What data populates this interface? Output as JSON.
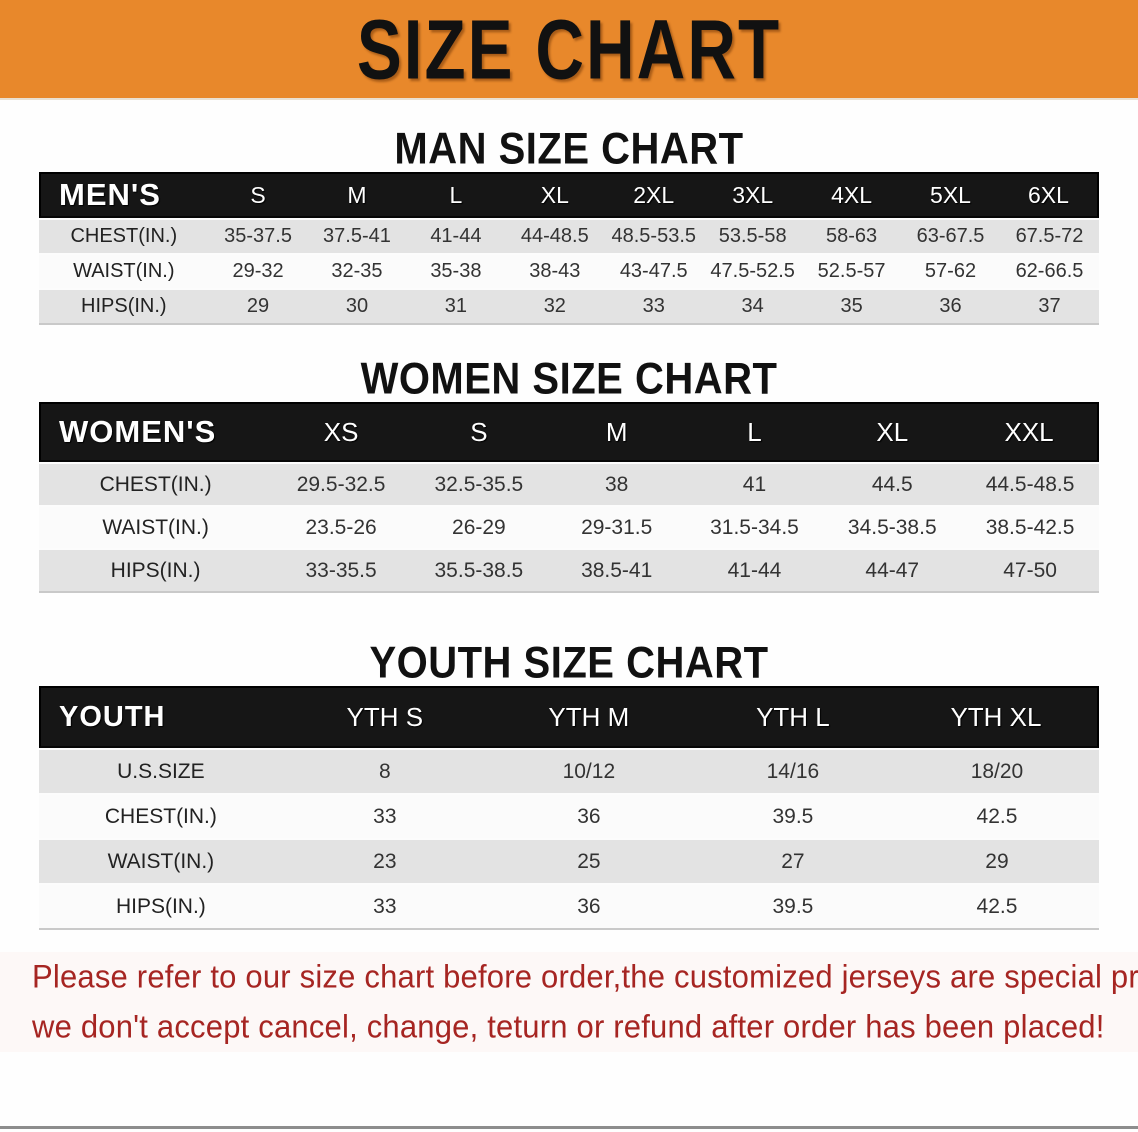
{
  "banner": {
    "title": "SIZE CHART",
    "bg_color": "#E8882B"
  },
  "colors": {
    "header_bar": "#161616",
    "stripe_gray": "#E3E3E3",
    "footer_red": "#A62522"
  },
  "sections": [
    {
      "title": "MAN SIZE CHART",
      "header_label": "MEN'S",
      "columns": [
        "S",
        "M",
        "L",
        "XL",
        "2XL",
        "3XL",
        "4XL",
        "5XL",
        "6XL"
      ],
      "rows": [
        {
          "label": "CHEST(IN.)",
          "values": [
            "35-37.5",
            "37.5-41",
            "41-44",
            "44-48.5",
            "48.5-53.5",
            "53.5-58",
            "58-63",
            "63-67.5",
            "67.5-72"
          ]
        },
        {
          "label": "WAIST(IN.)",
          "values": [
            "29-32",
            "32-35",
            "35-38",
            "38-43",
            "43-47.5",
            "47.5-52.5",
            "52.5-57",
            "57-62",
            "62-66.5"
          ]
        },
        {
          "label": "HIPS(IN.)",
          "values": [
            "29",
            "30",
            "31",
            "32",
            "33",
            "34",
            "35",
            "36",
            "37"
          ]
        }
      ]
    },
    {
      "title": "WOMEN SIZE CHART",
      "header_label": "WOMEN'S",
      "columns": [
        "XS",
        "S",
        "M",
        "L",
        "XL",
        "XXL"
      ],
      "rows": [
        {
          "label": "CHEST(IN.)",
          "values": [
            "29.5-32.5",
            "32.5-35.5",
            "38",
            "41",
            "44.5",
            "44.5-48.5"
          ]
        },
        {
          "label": "WAIST(IN.)",
          "values": [
            "23.5-26",
            "26-29",
            "29-31.5",
            "31.5-34.5",
            "34.5-38.5",
            "38.5-42.5"
          ]
        },
        {
          "label": "HIPS(IN.)",
          "values": [
            "33-35.5",
            "35.5-38.5",
            "38.5-41",
            "41-44",
            "44-47",
            "47-50"
          ]
        }
      ]
    },
    {
      "title": "YOUTH SIZE CHART",
      "header_label": "YOUTH",
      "columns": [
        "YTH S",
        "YTH M",
        "YTH L",
        "YTH XL"
      ],
      "rows": [
        {
          "label": "U.S.SIZE",
          "values": [
            "8",
            "10/12",
            "14/16",
            "18/20"
          ]
        },
        {
          "label": "CHEST(IN.)",
          "values": [
            "33",
            "36",
            "39.5",
            "42.5"
          ]
        },
        {
          "label": "WAIST(IN.)",
          "values": [
            "23",
            "25",
            "27",
            "29"
          ]
        },
        {
          "label": "HIPS(IN.)",
          "values": [
            "33",
            "36",
            "39.5",
            "42.5"
          ]
        }
      ]
    }
  ],
  "footer": {
    "line1": "Please refer to our size chart before order,the customized jerseys are special products,",
    "line2": "we don't accept cancel, change, teturn or refund after order has been placed!"
  }
}
